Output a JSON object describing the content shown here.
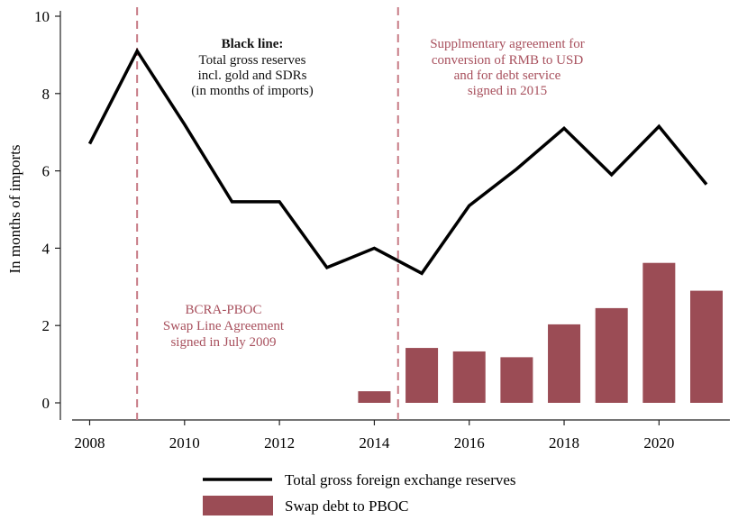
{
  "chart_data": {
    "type": "bar",
    "ylabel": "In months of imports",
    "xlabel": "",
    "title": "",
    "xlim": [
      2007.6,
      2021.6
    ],
    "ylim": [
      0,
      10
    ],
    "xticks": [
      2008,
      2010,
      2012,
      2014,
      2016,
      2018,
      2020
    ],
    "yticks": [
      0,
      2,
      4,
      6,
      8,
      10
    ],
    "grid": false,
    "legend_position": "bottom-center",
    "colors": {
      "line": "#000000",
      "bars": "#9b4c55",
      "vline": "#c77b86",
      "annotation": "#a8505d"
    },
    "series": [
      {
        "name": "Total gross foreign exchange reserves",
        "type": "line",
        "x": [
          2008,
          2009,
          2010,
          2011,
          2012,
          2013,
          2014,
          2015,
          2016,
          2017,
          2018,
          2019,
          2020,
          2021
        ],
        "values": [
          6.7,
          9.1,
          7.2,
          5.2,
          5.2,
          3.5,
          4.0,
          3.35,
          5.1,
          6.05,
          7.1,
          5.9,
          7.15,
          5.65
        ]
      },
      {
        "name": "Swap debt to PBOC",
        "type": "bar",
        "x": [
          2014,
          2015,
          2016,
          2017,
          2018,
          2019,
          2020,
          2021
        ],
        "values": [
          0.3,
          1.42,
          1.33,
          1.18,
          2.03,
          2.45,
          3.62,
          2.9
        ]
      }
    ],
    "vertical_lines": [
      2009,
      2014.5
    ],
    "annotations": {
      "black_line_title": "Black line:",
      "black_line_lines": [
        "Total gross reserves",
        "incl. gold and SDRs",
        "(in months of imports)"
      ],
      "supplementary_lines": [
        "Supplmentary agreement for",
        "conversion of RMB to USD",
        "and for debt service",
        "signed in 2015"
      ],
      "bcra_lines": [
        "BCRA-PBOC",
        "Swap Line Agreement",
        "signed in July 2009"
      ]
    }
  }
}
